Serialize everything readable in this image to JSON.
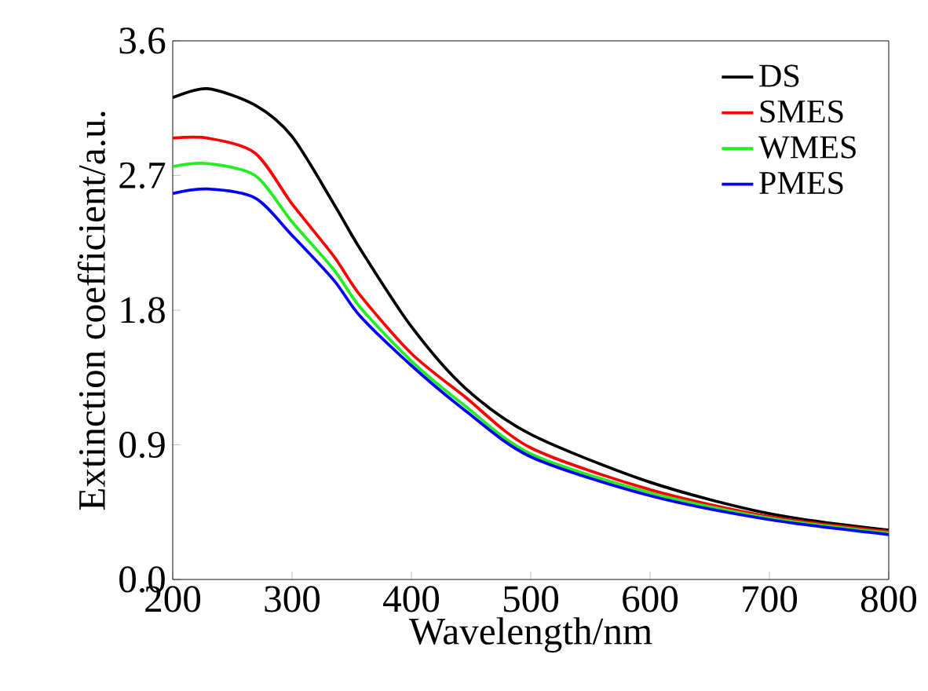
{
  "chart_data": {
    "type": "line",
    "xlabel": "Wavelength/nm",
    "ylabel": "Extinction coefficient/a.u.",
    "x": [
      200,
      229,
      269,
      300,
      335,
      357,
      400,
      445,
      500,
      600,
      700,
      800
    ],
    "series": [
      {
        "name": "DS",
        "color": "#000000",
        "values": [
          3.22,
          3.28,
          3.17,
          2.96,
          2.51,
          2.21,
          1.69,
          1.28,
          0.97,
          0.65,
          0.44,
          0.33
        ]
      },
      {
        "name": "SMES",
        "color": "#ff0000",
        "values": [
          2.95,
          2.95,
          2.85,
          2.51,
          2.16,
          1.9,
          1.51,
          1.22,
          0.88,
          0.6,
          0.42,
          0.32
        ]
      },
      {
        "name": "WMES",
        "color": "#22ee22",
        "values": [
          2.76,
          2.78,
          2.7,
          2.39,
          2.07,
          1.82,
          1.46,
          1.16,
          0.84,
          0.58,
          0.41,
          0.31
        ]
      },
      {
        "name": "PMES",
        "color": "#0000ff",
        "values": [
          2.58,
          2.61,
          2.55,
          2.3,
          2.0,
          1.76,
          1.43,
          1.13,
          0.82,
          0.56,
          0.4,
          0.3
        ]
      }
    ],
    "xlim": [
      200,
      800
    ],
    "ylim": [
      0,
      3.6
    ],
    "xticks": [
      200,
      300,
      400,
      500,
      600,
      700,
      800
    ],
    "yticks": [
      {
        "value": 0,
        "label": "0.0"
      },
      0.9,
      1.8,
      2.7,
      3.6
    ],
    "legend": "top right",
    "grid": false,
    "marker": "none",
    "line_style": "solid"
  }
}
